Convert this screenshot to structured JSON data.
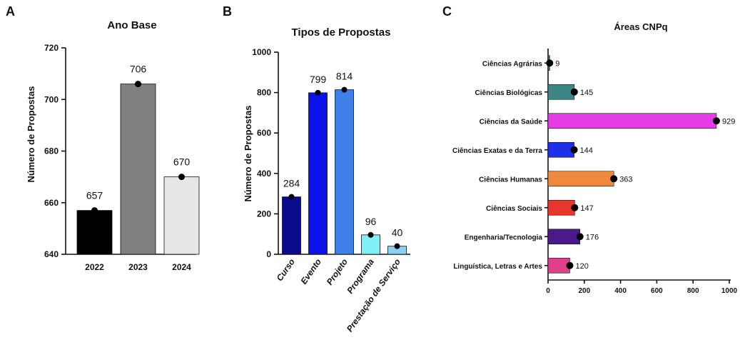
{
  "panels": {
    "a": {
      "letter": "A",
      "chart_data": {
        "type": "bar",
        "title": "Ano Base",
        "ylabel": "Número de Propostas",
        "categories": [
          "2022",
          "2023",
          "2024"
        ],
        "values": [
          657,
          706,
          670
        ],
        "value_labels": [
          "657",
          "706",
          "670"
        ],
        "colors": [
          "#000000",
          "#808080",
          "#e6e6e6"
        ],
        "ylim": [
          640,
          720
        ],
        "yticks": [
          "640",
          "660",
          "680",
          "700",
          "720"
        ],
        "ytick_values": [
          640,
          660,
          680,
          700,
          720
        ]
      }
    },
    "b": {
      "letter": "B",
      "chart_data": {
        "type": "bar",
        "title": "Tipos de Propostas",
        "ylabel": "Número de Propostas",
        "categories": [
          "Curso",
          "Evento",
          "Projeto",
          "Programa",
          "Prestação de Serviço"
        ],
        "values": [
          284,
          799,
          814,
          96,
          40
        ],
        "value_labels": [
          "284",
          "799",
          "814",
          "96",
          "40"
        ],
        "colors": [
          "#0a0a8c",
          "#0b13ea",
          "#3f7fe8",
          "#7ff0f5",
          "#8fd0f0"
        ],
        "ylim": [
          0,
          1000
        ],
        "yticks": [
          "0",
          "200",
          "400",
          "600",
          "800",
          "1000"
        ],
        "ytick_values": [
          0,
          200,
          400,
          600,
          800,
          1000
        ]
      }
    },
    "c": {
      "letter": "C",
      "chart_data": {
        "type": "bar",
        "orientation": "horizontal",
        "title": "Áreas CNPq",
        "categories": [
          "Ciências Agrárias",
          "Ciências Biológicas",
          "Ciências da Saúde",
          "Ciências Exatas e da Terra",
          "Ciências Humanas",
          "Ciências Sociais",
          "Engenharia/Tecnologia",
          "Linguística, Letras e Artes"
        ],
        "values": [
          9,
          145,
          929,
          144,
          363,
          147,
          176,
          120
        ],
        "value_labels": [
          "9",
          "145",
          "929",
          "144",
          "363",
          "147",
          "176",
          "120"
        ],
        "colors": [
          "#2e7d2e",
          "#3e8585",
          "#e53ce5",
          "#1f2ee8",
          "#ef8a3c",
          "#e8362c",
          "#4b1a8a",
          "#e0408a"
        ],
        "xlim": [
          0,
          1000
        ],
        "xticks": [
          "0",
          "200",
          "400",
          "600",
          "800",
          "1000"
        ],
        "xtick_values": [
          0,
          200,
          400,
          600,
          800,
          1000
        ]
      }
    }
  }
}
